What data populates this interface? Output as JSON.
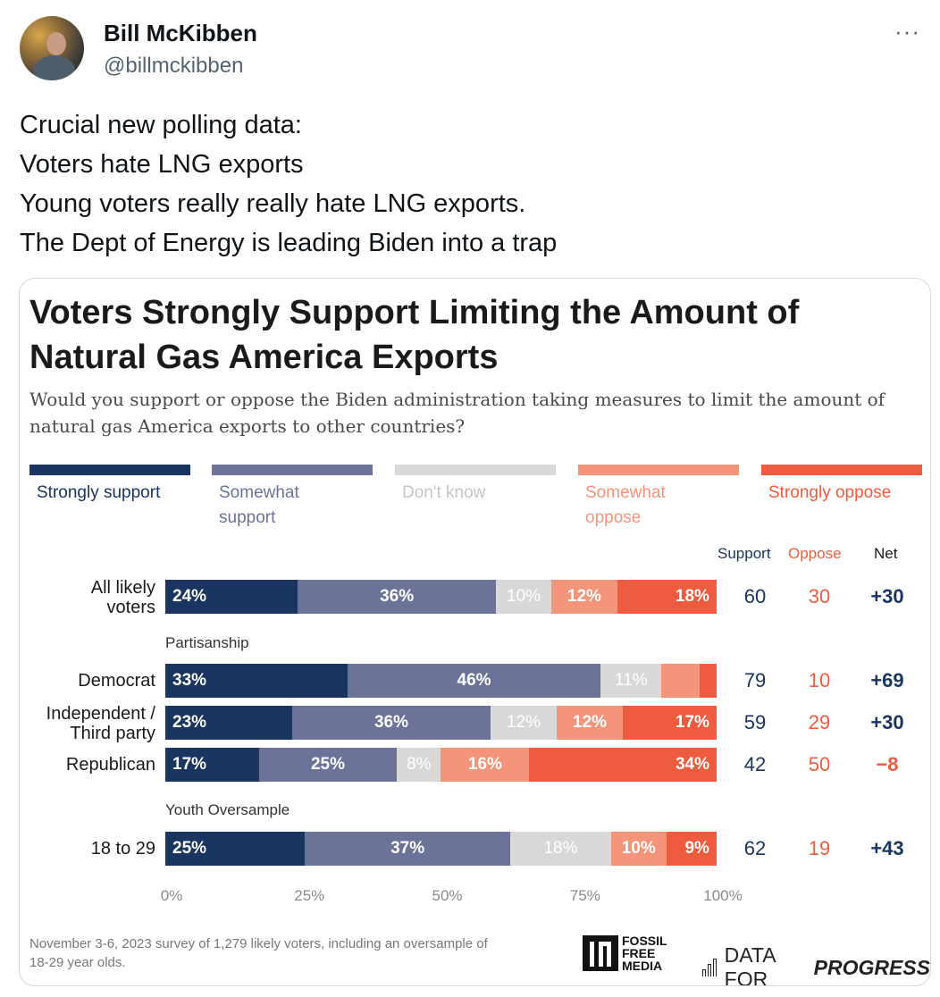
{
  "tweet": {
    "author_name": "Bill McKibben",
    "handle": "@billmckibben",
    "more_label": "···",
    "lines": [
      "Crucial new polling data:",
      "Voters hate LNG exports",
      "Young voters really really hate LNG exports.",
      "The Dept of Energy is leading Biden into a trap"
    ]
  },
  "card": {
    "title": "Voters Strongly Support Limiting the Amount of Natural Gas America Exports",
    "subtitle": "Would you support or oppose the Biden administration taking measures to limit the amount of natural gas America exports to other countries?",
    "legend": [
      {
        "label": "Strongly support",
        "color": "#1b3561"
      },
      {
        "label": "Somewhat support",
        "color": "#6b7399"
      },
      {
        "label": "Don't know",
        "color": "#d8d8d8"
      },
      {
        "label": "Somewhat oppose",
        "color": "#f4947a"
      },
      {
        "label": "Strongly oppose",
        "color": "#ef5b3e"
      }
    ],
    "column_headers": {
      "support": "Support",
      "oppose": "Oppose",
      "net": "Net"
    },
    "groups": {
      "partisanship": "Partisanship",
      "youth": "Youth Oversample"
    },
    "footnote": "November 3-6, 2023 survey of 1,279 likely voters, including an oversample of 18-29 year olds.",
    "logos": {
      "ffm": [
        "FOSSIL",
        "FREE",
        "MEDIA"
      ],
      "dfp_prefix": "DATA FOR",
      "dfp_bold": "PROGRESS"
    }
  },
  "chart_data": {
    "type": "bar",
    "orientation": "horizontal-stacked",
    "title": "Voters Strongly Support Limiting the Amount of Natural Gas America Exports",
    "subtitle": "Would you support or oppose the Biden administration taking measures to limit the amount of natural gas America exports to other countries?",
    "xlim": [
      0,
      100
    ],
    "x_ticks": [
      "0%",
      "25%",
      "50%",
      "75%",
      "100%"
    ],
    "series_names": [
      "Strongly support",
      "Somewhat support",
      "Don't know",
      "Somewhat oppose",
      "Strongly oppose"
    ],
    "rows": [
      {
        "label": "All likely voters",
        "values": [
          24,
          36,
          10,
          12,
          18
        ],
        "labels": [
          "24%",
          "36%",
          "10%",
          "12%",
          "18%"
        ],
        "support": "60",
        "oppose": "30",
        "net": "+30"
      },
      {
        "label": "Democrat",
        "values": [
          33,
          46,
          11,
          7,
          3
        ],
        "labels": [
          "33%",
          "46%",
          "11%",
          "",
          ""
        ],
        "support": "79",
        "oppose": "10",
        "net": "+69"
      },
      {
        "label": "Independent / Third party",
        "values": [
          23,
          36,
          12,
          12,
          17
        ],
        "labels": [
          "23%",
          "36%",
          "12%",
          "12%",
          "17%"
        ],
        "support": "59",
        "oppose": "29",
        "net": "+30"
      },
      {
        "label": "Republican",
        "values": [
          17,
          25,
          8,
          16,
          34
        ],
        "labels": [
          "17%",
          "25%",
          "8%",
          "16%",
          "34%"
        ],
        "support": "42",
        "oppose": "50",
        "net": "−8"
      },
      {
        "label": "18 to 29",
        "values": [
          25,
          37,
          18,
          10,
          9
        ],
        "labels": [
          "25%",
          "37%",
          "18%",
          "10%",
          "9%"
        ],
        "support": "62",
        "oppose": "19",
        "net": "+43"
      }
    ]
  }
}
